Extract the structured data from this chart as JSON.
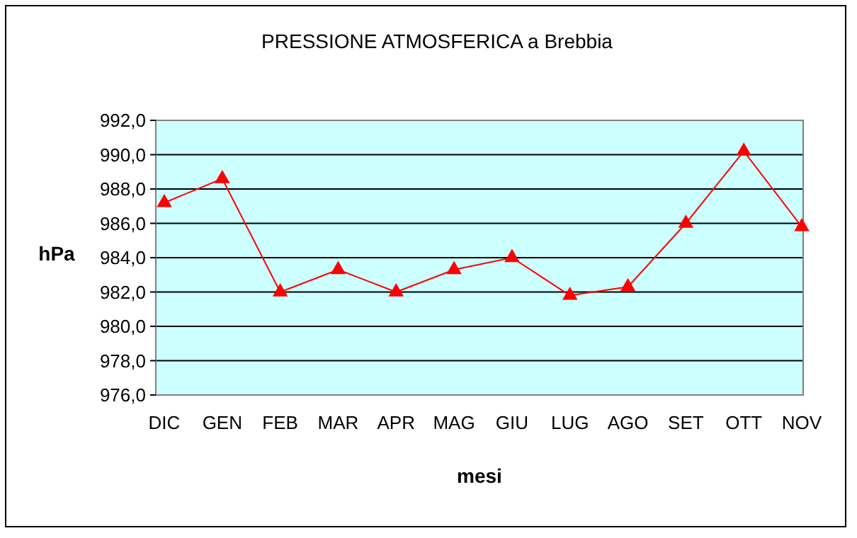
{
  "chart_data": {
    "type": "line",
    "title": "PRESSIONE ATMOSFERICA a Brebbia",
    "xlabel": "mesi",
    "ylabel": "hPa",
    "categories": [
      "DIC",
      "GEN",
      "FEB",
      "MAR",
      "APR",
      "MAG",
      "GIU",
      "LUG",
      "AGO",
      "SET",
      "OTT",
      "NOV"
    ],
    "series": [
      {
        "color": "#ff0000",
        "values": [
          987.2,
          988.6,
          982.0,
          983.3,
          982.0,
          983.3,
          984.0,
          981.8,
          982.3,
          986.0,
          990.2,
          985.8
        ]
      }
    ],
    "ylim": [
      976,
      992
    ],
    "yticks": [
      {
        "value": 976,
        "label": "976,0"
      },
      {
        "value": 978,
        "label": "978,0"
      },
      {
        "value": 980,
        "label": "980,0"
      },
      {
        "value": 982,
        "label": "982,0"
      },
      {
        "value": 984,
        "label": "984,0"
      },
      {
        "value": 986,
        "label": "986,0"
      },
      {
        "value": 988,
        "label": "988,0"
      },
      {
        "value": 990,
        "label": "990,0"
      },
      {
        "value": 992,
        "label": "992,0"
      }
    ],
    "grid": "y",
    "marker": "triangle",
    "line_style": "solid"
  }
}
